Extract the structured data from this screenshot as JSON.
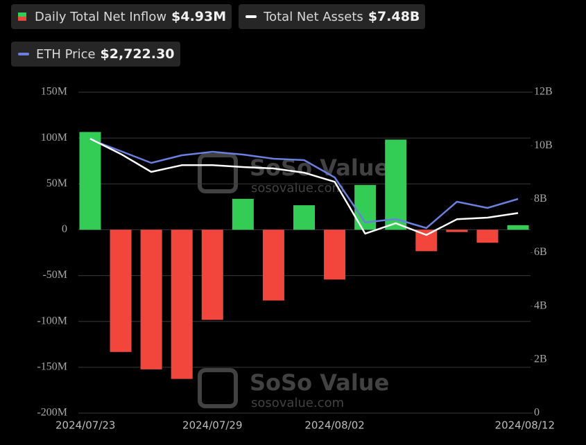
{
  "chart_data": {
    "type": "bar",
    "categories": [
      "2024/07/23",
      null,
      null,
      null,
      "2024/07/29",
      null,
      null,
      null,
      "2024/08/02",
      null,
      null,
      null,
      null,
      null,
      "2024/08/12"
    ],
    "series": [
      {
        "name": "Daily Total Net Inflow",
        "legend_value": "$4.93M",
        "type": "bar",
        "axis": "y",
        "color_positive": "#33cc55",
        "color_negative": "#f2463c",
        "values": [
          106600000,
          -133300000,
          -152300000,
          -162700000,
          -98300000,
          33700000,
          -77200000,
          26700000,
          -54300000,
          48800000,
          98300000,
          -23400000,
          -2500000,
          -14200000,
          4930000
        ]
      },
      {
        "name": "Total Net Assets",
        "legend_value": "$7.48B",
        "type": "line",
        "axis": "y2",
        "color": "#ffffff",
        "values": [
          10260000000,
          9690000000,
          9020000000,
          9270000000,
          9270000000,
          9200000000,
          9150000000,
          8990000000,
          8650000000,
          6710000000,
          7100000000,
          6660000000,
          7250000000,
          7310000000,
          7480000000
        ]
      },
      {
        "name": "ETH Price",
        "legend_value": "$2,722.30",
        "type": "line",
        "color": "#6b80de",
        "values": [
          3480,
          3330,
          3180,
          3277,
          3321,
          3286,
          3233,
          3216,
          2995,
          2423,
          2467,
          2352,
          2687,
          2608,
          2722.3
        ]
      }
    ],
    "ylim": [
      -200000000,
      150000000
    ],
    "yticks": [
      {
        "value": -200000000,
        "label": "-200M"
      },
      {
        "value": -150000000,
        "label": "-150M"
      },
      {
        "value": -100000000,
        "label": "-100M"
      },
      {
        "value": -50000000,
        "label": "-50M"
      },
      0,
      {
        "value": 50000000,
        "label": "50M"
      },
      {
        "value": 100000000,
        "label": "100M"
      },
      {
        "value": 150000000,
        "label": "150M"
      }
    ],
    "y2lim": [
      0,
      12000000000
    ],
    "y2ticks": [
      0,
      {
        "value": 2000000000,
        "label": "2B"
      },
      {
        "value": 4000000000,
        "label": "4B"
      },
      {
        "value": 6000000000,
        "label": "6B"
      },
      {
        "value": 8000000000,
        "label": "8B"
      },
      {
        "value": 10000000000,
        "label": "10B"
      },
      {
        "value": 12000000000,
        "label": "12B"
      }
    ],
    "grid": true,
    "watermark": {
      "name": "SoSo Value",
      "url": "sosovalue.com"
    }
  }
}
